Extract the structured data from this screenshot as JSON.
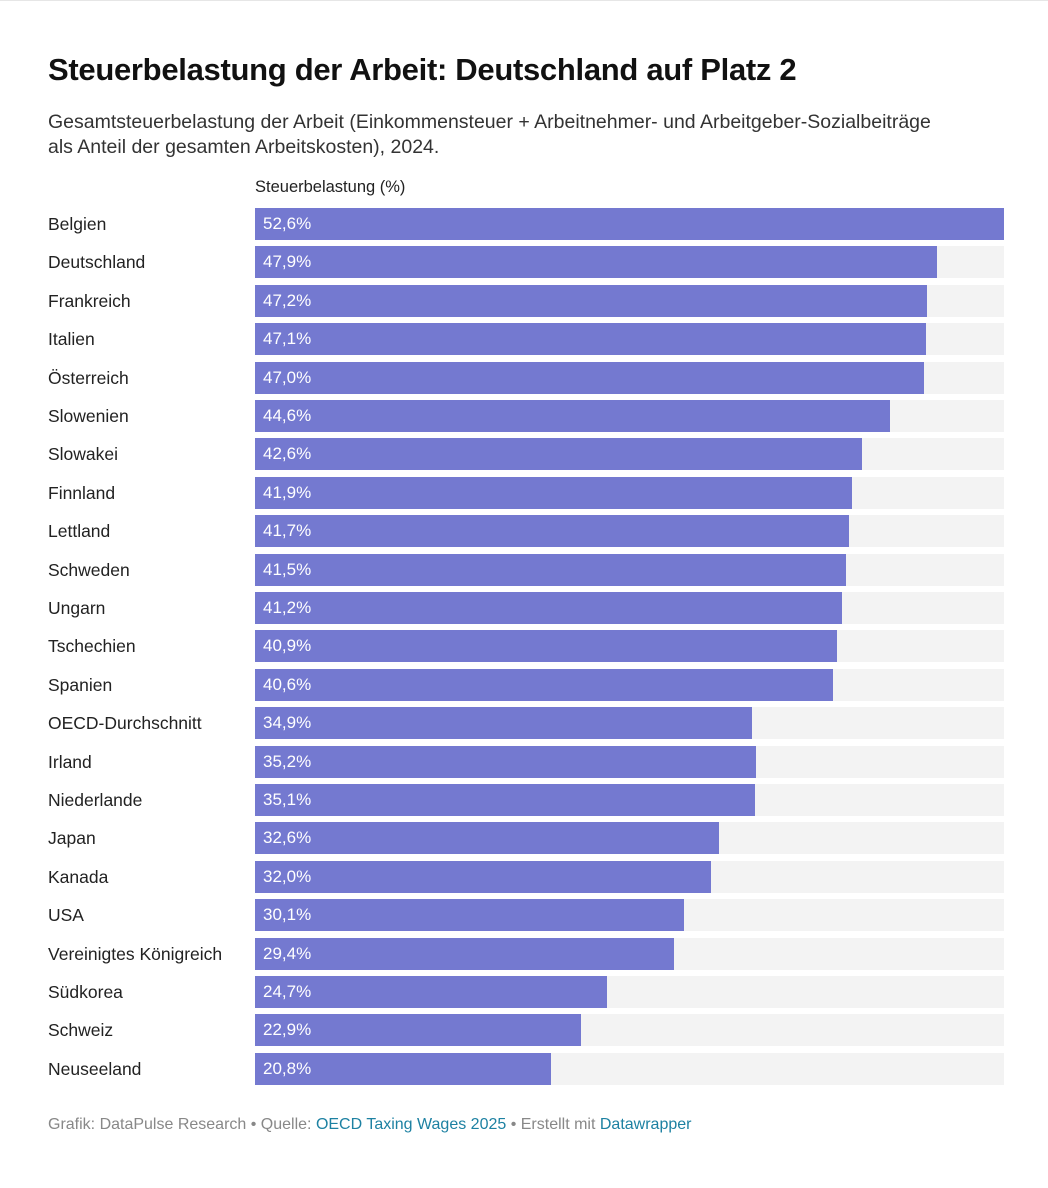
{
  "title": "Steuerbelastung der Arbeit: Deutschland auf Platz 2",
  "subtitle": "Gesamtsteuerbelastung der Arbeit (Einkommensteuer + Arbeitnehmer- und Arbeitgeber-Sozialbeiträge als Anteil der gesamten Arbeitskosten), 2024.",
  "footer": {
    "prefix": "Grafik: DataPulse Research • Quelle: ",
    "source_link": "OECD Taxing Wages 2025",
    "middle": " • Erstellt mit ",
    "tool_link": "Datawrapper"
  },
  "colors": {
    "bar": "#7479d0",
    "track": "#f3f3f3",
    "link": "#1d81a2"
  },
  "chart_data": {
    "type": "bar",
    "orientation": "horizontal",
    "column_header": "Steuerbelastung (%)",
    "categories": [
      "Belgien",
      "Deutschland",
      "Frankreich",
      "Italien",
      "Österreich",
      "Slowenien",
      "Slowakei",
      "Finnland",
      "Lettland",
      "Schweden",
      "Ungarn",
      "Tschechien",
      "Spanien",
      "OECD-Durchschnitt",
      "Irland",
      "Niederlande",
      "Japan",
      "Kanada",
      "USA",
      "Vereinigtes Königreich",
      "Südkorea",
      "Schweiz",
      "Neuseeland"
    ],
    "values": [
      52.6,
      47.9,
      47.2,
      47.1,
      47.0,
      44.6,
      42.6,
      41.9,
      41.7,
      41.5,
      41.2,
      40.9,
      40.6,
      34.9,
      35.2,
      35.1,
      32.6,
      32.0,
      30.1,
      29.4,
      24.7,
      22.9,
      20.8
    ],
    "labels": [
      "52,6%",
      "47,9%",
      "47,2%",
      "47,1%",
      "47,0%",
      "44,6%",
      "42,6%",
      "41,9%",
      "41,7%",
      "41,5%",
      "41,2%",
      "40,9%",
      "40,6%",
      "34,9%",
      "35,2%",
      "35,1%",
      "32,6%",
      "32,0%",
      "30,1%",
      "29,4%",
      "24,7%",
      "22,9%",
      "20,8%"
    ],
    "xlim": [
      0,
      52.6
    ]
  }
}
